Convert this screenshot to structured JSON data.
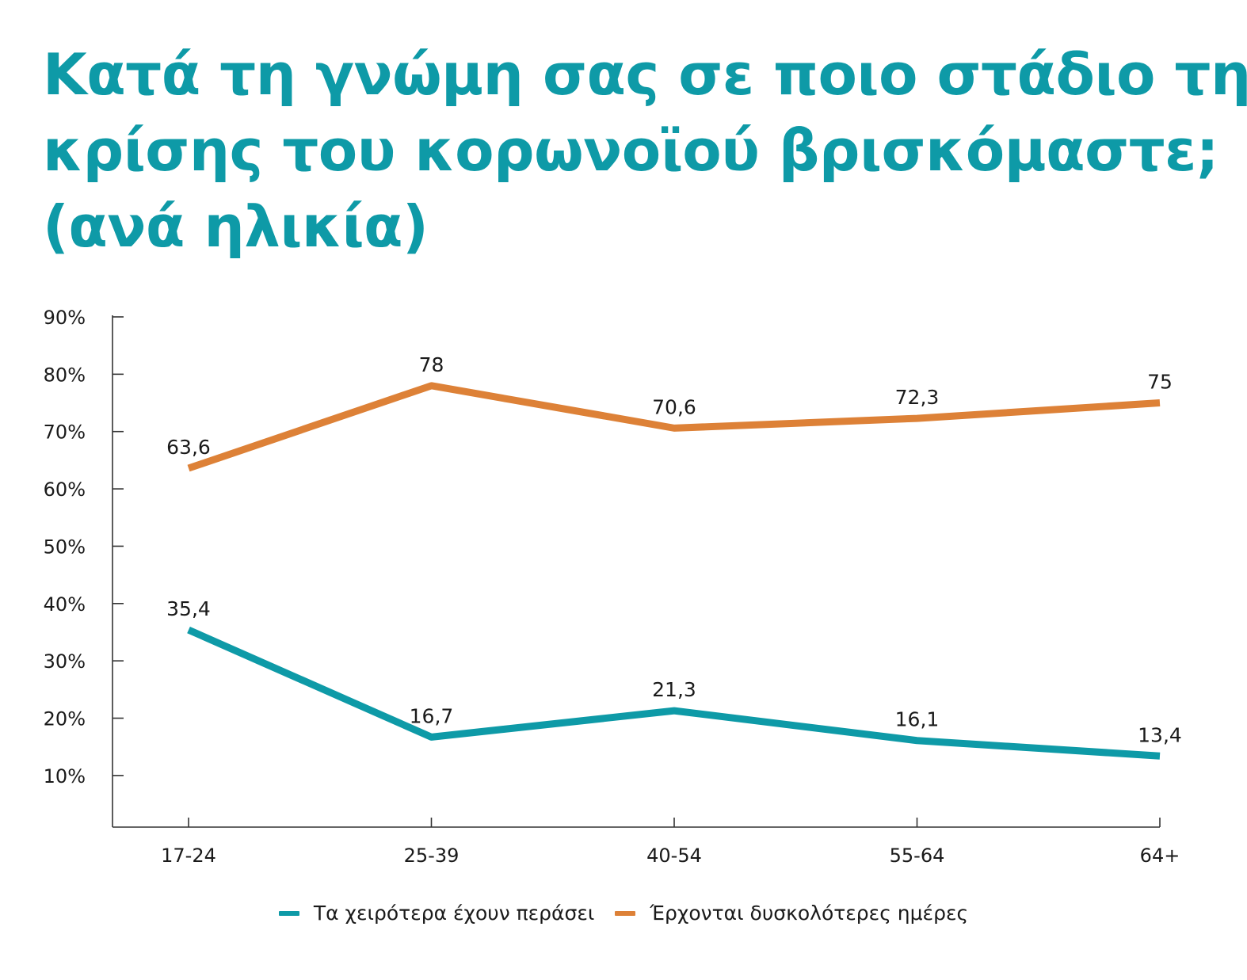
{
  "title_lines": [
    "Κατά τη γνώμη σας σε ποιο στάδιο της",
    "κρίσης του κορωνοϊού βρισκόμαστε;",
    "(ανά ηλικία)"
  ],
  "chart_data": {
    "type": "line",
    "title": "Κατά τη γνώμη σας σε ποιο στάδιο της κρίσης του κορωνοϊού βρισκόμαστε; (ανά ηλικία)",
    "categories": [
      "17-24",
      "25-39",
      "40-54",
      "55-64",
      "64+"
    ],
    "y_ticks": [
      "10%",
      "20%",
      "30%",
      "40%",
      "50%",
      "60%",
      "70%",
      "80%",
      "90%"
    ],
    "y_tick_values": [
      10,
      20,
      30,
      40,
      50,
      60,
      70,
      80,
      90
    ],
    "ylim": [
      1,
      90
    ],
    "grid": false,
    "legend_position": "bottom",
    "series": [
      {
        "name": "Τα χειρότερα έχουν περάσει",
        "color": "#0e9aa7",
        "values": [
          35.4,
          16.7,
          21.3,
          16.1,
          13.4
        ],
        "labels": [
          "35,4",
          "16,7",
          "21,3",
          "16,1",
          "13,4"
        ]
      },
      {
        "name": "Έρχονται δυσκολότερες ημέρες",
        "color": "#dd8137",
        "values": [
          63.6,
          78,
          70.6,
          72.3,
          75
        ],
        "labels": [
          "63,6",
          "78",
          "70,6",
          "72,3",
          "75"
        ]
      }
    ]
  }
}
